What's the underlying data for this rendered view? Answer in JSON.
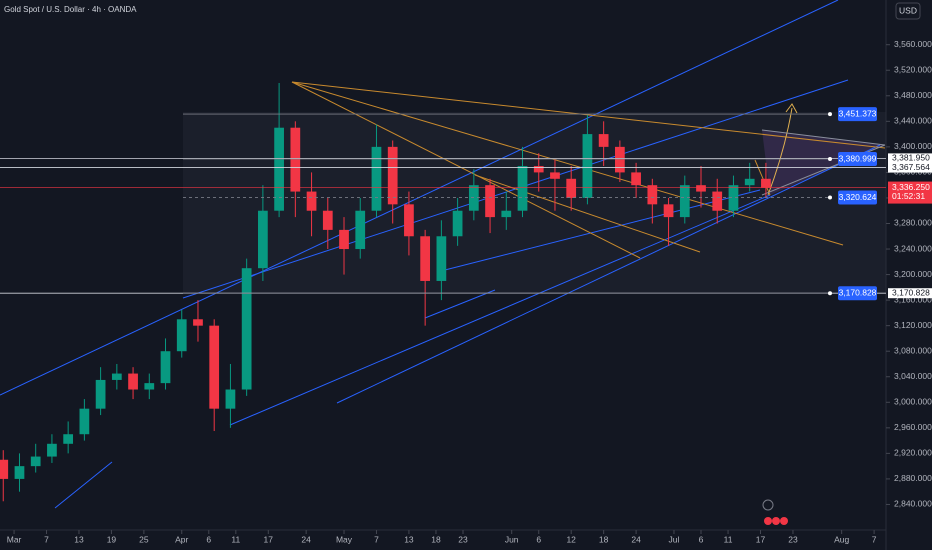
{
  "chart_data": {
    "type": "candlestick",
    "title": "Gold Spot / U.S. Dollar · 4h · OANDA",
    "currency": "USD",
    "colors": {
      "up": "#089981",
      "down": "#f23645"
    },
    "xlim": [
      57.4,
      221.2
    ],
    "xticks": [
      {
        "value": 60,
        "label": "Mar"
      },
      {
        "value": 66,
        "label": "7"
      },
      {
        "value": 72,
        "label": "13"
      },
      {
        "value": 78,
        "label": "19"
      },
      {
        "value": 84,
        "label": "25"
      },
      {
        "value": 91,
        "label": "Apr"
      },
      {
        "value": 96,
        "label": "6"
      },
      {
        "value": 101,
        "label": "11"
      },
      {
        "value": 107,
        "label": "17"
      },
      {
        "value": 114,
        "label": "24"
      },
      {
        "value": 121,
        "label": "May"
      },
      {
        "value": 127,
        "label": "7"
      },
      {
        "value": 133,
        "label": "13"
      },
      {
        "value": 138,
        "label": "18"
      },
      {
        "value": 143,
        "label": "23"
      },
      {
        "value": 152,
        "label": "Jun"
      },
      {
        "value": 157,
        "label": "6"
      },
      {
        "value": 163,
        "label": "12"
      },
      {
        "value": 169,
        "label": "18"
      },
      {
        "value": 175,
        "label": "24"
      },
      {
        "value": 182,
        "label": "Jul"
      },
      {
        "value": 187,
        "label": "6"
      },
      {
        "value": 192,
        "label": "11"
      },
      {
        "value": 198,
        "label": "17"
      },
      {
        "value": 204,
        "label": "23"
      },
      {
        "value": 213,
        "label": "Aug"
      },
      {
        "value": 219,
        "label": "7"
      }
    ],
    "ylim": [
      2800,
      3630
    ],
    "yticks": [
      {
        "value": 2840,
        "label": "2,840.000"
      },
      {
        "value": 2880,
        "label": "2,880.000"
      },
      {
        "value": 2920,
        "label": "2,920.000"
      },
      {
        "value": 2960,
        "label": "2,960.000"
      },
      {
        "value": 3000,
        "label": "3,000.000"
      },
      {
        "value": 3040,
        "label": "3,040.000"
      },
      {
        "value": 3080,
        "label": "3,080.000"
      },
      {
        "value": 3120,
        "label": "3,120.000"
      },
      {
        "value": 3160,
        "label": "3,160.000"
      },
      {
        "value": 3200,
        "label": "3,200.000"
      },
      {
        "value": 3240,
        "label": "3,240.000"
      },
      {
        "value": 3280,
        "label": "3,280.000"
      },
      {
        "value": 3320,
        "label": "3,320.000"
      },
      {
        "value": 3360,
        "label": "3,360.000"
      },
      {
        "value": 3400,
        "label": "3,400.000"
      },
      {
        "value": 3440,
        "label": "3,440.000"
      },
      {
        "value": 3480,
        "label": "3,480.000"
      },
      {
        "value": 3520,
        "label": "3,520.000"
      },
      {
        "value": 3560,
        "label": "3,560.000"
      }
    ],
    "grid": false,
    "candles": {
      "x": [
        58,
        61,
        64,
        67,
        70,
        73,
        76,
        79,
        82,
        85,
        88,
        91,
        94,
        97,
        100,
        103,
        106,
        109,
        112,
        115,
        118,
        121,
        124,
        127,
        130,
        133,
        136,
        139,
        142,
        145,
        148,
        151,
        154,
        157,
        160,
        163,
        166,
        169,
        172,
        175,
        178,
        181,
        184,
        187,
        190,
        193,
        196,
        199
      ],
      "open": [
        2910,
        2880,
        2900,
        2915,
        2935,
        2950,
        2990,
        3035,
        3045,
        3020,
        3030,
        3080,
        3130,
        3120,
        2990,
        3020,
        3210,
        3300,
        3430,
        3330,
        3300,
        3270,
        3240,
        3300,
        3400,
        3310,
        3260,
        3190,
        3260,
        3300,
        3340,
        3290,
        3300,
        3370,
        3360,
        3350,
        3320,
        3420,
        3400,
        3360,
        3340,
        3310,
        3290,
        3340,
        3330,
        3300,
        3340,
        3350
      ],
      "high": [
        2925,
        2920,
        2935,
        2950,
        2970,
        3005,
        3055,
        3060,
        3055,
        3045,
        3100,
        3145,
        3160,
        3130,
        3060,
        3225,
        3340,
        3500,
        3440,
        3360,
        3320,
        3290,
        3320,
        3435,
        3410,
        3330,
        3270,
        3285,
        3320,
        3365,
        3350,
        3330,
        3400,
        3390,
        3380,
        3370,
        3450,
        3440,
        3410,
        3375,
        3350,
        3320,
        3355,
        3370,
        3350,
        3355,
        3375,
        3375
      ],
      "low": [
        2845,
        2860,
        2890,
        2905,
        2920,
        2940,
        2980,
        3020,
        3005,
        3005,
        3020,
        3070,
        3095,
        2955,
        2960,
        3010,
        3190,
        3290,
        3290,
        3260,
        3240,
        3200,
        3225,
        3290,
        3280,
        3230,
        3120,
        3160,
        3245,
        3285,
        3265,
        3270,
        3290,
        3330,
        3300,
        3300,
        3310,
        3370,
        3345,
        3320,
        3280,
        3245,
        3280,
        3305,
        3280,
        3290,
        3330,
        3320
      ],
      "close": [
        2880,
        2900,
        2915,
        2935,
        2950,
        2990,
        3035,
        3045,
        3020,
        3030,
        3080,
        3130,
        3120,
        2990,
        3020,
        3210,
        3300,
        3430,
        3330,
        3300,
        3270,
        3240,
        3300,
        3400,
        3310,
        3260,
        3190,
        3260,
        3300,
        3340,
        3290,
        3300,
        3370,
        3360,
        3350,
        3320,
        3420,
        3400,
        3360,
        3340,
        3310,
        3290,
        3340,
        3330,
        3300,
        3340,
        3350,
        3336
      ]
    },
    "alert_levels": [
      {
        "value": 3451.373,
        "label": "3,451.373"
      },
      {
        "value": 3380.999,
        "label": "3,380.999"
      },
      {
        "value": 3320.624,
        "label": "3,320.624"
      },
      {
        "value": 3170.828,
        "label": "3,170.828"
      }
    ],
    "axis_levels": [
      {
        "value": 3381.95,
        "label": "3,381.950"
      },
      {
        "value": 3367.564,
        "label": "3,367.564"
      },
      {
        "value": 3170.828,
        "label": "3,170.828"
      }
    ],
    "last_price": {
      "value": 3336.25,
      "label": "3,336.250",
      "countdown": "01:52:31"
    }
  }
}
